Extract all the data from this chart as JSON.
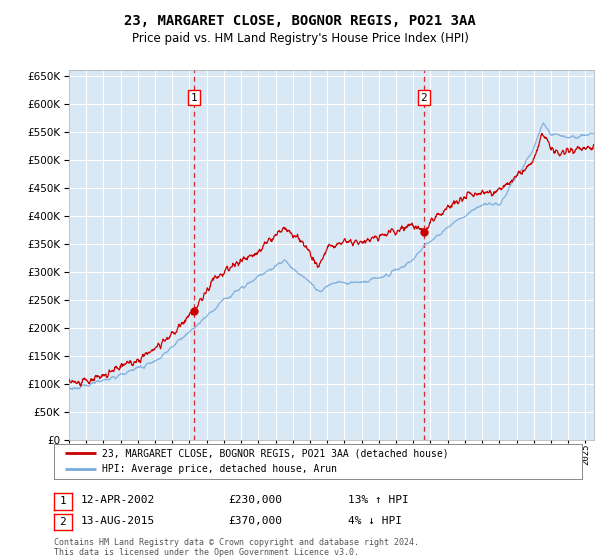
{
  "title": "23, MARGARET CLOSE, BOGNOR REGIS, PO21 3AA",
  "subtitle": "Price paid vs. HM Land Registry's House Price Index (HPI)",
  "bg_color": "#d8e8f4",
  "grid_color": "#ffffff",
  "sale1_date": 2002.28,
  "sale1_price": 230000,
  "sale2_date": 2015.62,
  "sale2_price": 370000,
  "legend_line1": "23, MARGARET CLOSE, BOGNOR REGIS, PO21 3AA (detached house)",
  "legend_line2": "HPI: Average price, detached house, Arun",
  "footer": "Contains HM Land Registry data © Crown copyright and database right 2024.\nThis data is licensed under the Open Government Licence v3.0.",
  "red_color": "#cc0000",
  "blue_color": "#7aaadd",
  "xmin": 1995,
  "xmax": 2025.5,
  "ymin": 0,
  "ymax": 660000,
  "yticks": [
    0,
    50000,
    100000,
    150000,
    200000,
    250000,
    300000,
    350000,
    400000,
    450000,
    500000,
    550000,
    600000,
    650000
  ]
}
